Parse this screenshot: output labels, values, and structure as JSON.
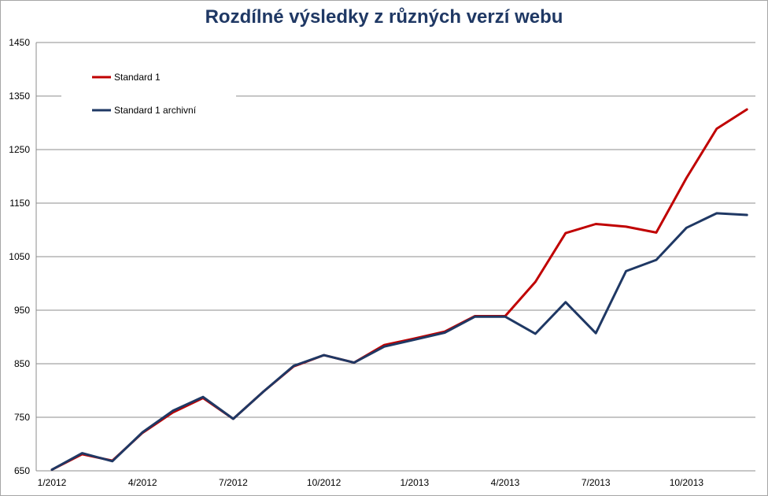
{
  "chart_data": {
    "type": "line",
    "title": "Rozdílné výsledky z různých verzí webu",
    "xlabel": "",
    "ylabel": "",
    "ylim": [
      650,
      1450
    ],
    "yticks": [
      650,
      750,
      850,
      950,
      1050,
      1150,
      1250,
      1350,
      1450
    ],
    "x_tick_labels": [
      "1/2012",
      "4/2012",
      "7/2012",
      "10/2012",
      "1/2013",
      "4/2013",
      "7/2013",
      "10/2013"
    ],
    "x": [
      "1/2012",
      "2/2012",
      "3/2012",
      "4/2012",
      "5/2012",
      "6/2012",
      "7/2012",
      "8/2012",
      "9/2012",
      "10/2012",
      "11/2012",
      "12/2012",
      "1/2013",
      "2/2013",
      "3/2013",
      "4/2013",
      "5/2013",
      "6/2013",
      "7/2013",
      "8/2013",
      "9/2013",
      "10/2013",
      "11/2013",
      "12/2013"
    ],
    "series": [
      {
        "name": "Standard 1",
        "color": "#c00000",
        "values": [
          652,
          681,
          669,
          721,
          759,
          786,
          747,
          798,
          845,
          866,
          852,
          885,
          897,
          910,
          939,
          939,
          1003,
          1094,
          1111,
          1106,
          1095,
          1197,
          1289,
          1325
        ]
      },
      {
        "name": "Standard 1 archivní",
        "color": "#1f3864",
        "values": [
          652,
          683,
          668,
          722,
          762,
          788,
          747,
          798,
          846,
          866,
          852,
          882,
          895,
          908,
          938,
          938,
          906,
          965,
          907,
          1023,
          1044,
          1104,
          1131,
          1128
        ]
      }
    ],
    "grid": true,
    "legend_position": "top-left"
  }
}
